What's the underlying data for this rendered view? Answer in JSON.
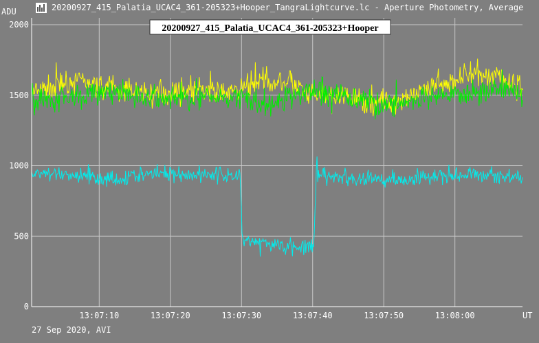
{
  "window": {
    "title": "20200927_415_Palatia_UCAC4_361-205323+Hooper_TangraLightcurve.lc - Aperture Photometry, Average",
    "icon": "lightcurve-app-icon"
  },
  "footer": {
    "date_label": "27 Sep 2020, AVI"
  },
  "colors": {
    "background": "#7f7f7f",
    "grid": "#c8c8c8",
    "text": "#ffffff"
  },
  "chart_data": {
    "type": "line",
    "title": "20200927_415_Palatia_UCAC4_361-205323+Hooper",
    "ylabel": "ADU",
    "xlabel": "UT",
    "ylim": [
      0,
      2000
    ],
    "y_ticks": [
      "0",
      "500",
      "1000",
      "1500",
      "2000"
    ],
    "x_ticks": [
      "13:07:10",
      "13:07:20",
      "13:07:30",
      "13:07:40",
      "13:07:50",
      "13:08:00"
    ],
    "x_range": [
      "13:07:00.5",
      "13:08:09.5"
    ],
    "grid": true,
    "series": [
      {
        "color": "#ffff00",
        "x_start": "13:07:00.5",
        "x_end": "13:08:09.5",
        "keyframes": [
          [
            0,
            1510
          ],
          [
            0.08,
            1600
          ],
          [
            0.16,
            1560
          ],
          [
            0.25,
            1510
          ],
          [
            0.33,
            1540
          ],
          [
            0.41,
            1520
          ],
          [
            0.47,
            1600
          ],
          [
            0.52,
            1600
          ],
          [
            0.57,
            1490
          ],
          [
            0.64,
            1480
          ],
          [
            0.72,
            1450
          ],
          [
            0.8,
            1520
          ],
          [
            0.88,
            1640
          ],
          [
            0.95,
            1650
          ],
          [
            1,
            1540
          ]
        ],
        "noise": 90
      },
      {
        "color": "#00ee00",
        "x_start": "13:07:00.5",
        "x_end": "13:08:09.5",
        "keyframes": [
          [
            0,
            1450
          ],
          [
            0.08,
            1500
          ],
          [
            0.16,
            1520
          ],
          [
            0.25,
            1470
          ],
          [
            0.33,
            1480
          ],
          [
            0.41,
            1500
          ],
          [
            0.47,
            1420
          ],
          [
            0.52,
            1470
          ],
          [
            0.57,
            1540
          ],
          [
            0.64,
            1490
          ],
          [
            0.72,
            1430
          ],
          [
            0.8,
            1460
          ],
          [
            0.88,
            1510
          ],
          [
            0.95,
            1560
          ],
          [
            1,
            1510
          ]
        ],
        "noise": 90
      },
      {
        "color": "#00eeee",
        "x_start": "13:07:00.5",
        "x_end": "13:08:09.5",
        "keyframes": [
          [
            0,
            950
          ],
          [
            0.1,
            930
          ],
          [
            0.17,
            900
          ],
          [
            0.25,
            950
          ],
          [
            0.35,
            935
          ],
          [
            0.425,
            930
          ],
          [
            0.429,
            480
          ],
          [
            0.5,
            430
          ],
          [
            0.56,
            420
          ],
          [
            0.575,
            430
          ],
          [
            0.58,
            930
          ],
          [
            0.65,
            910
          ],
          [
            0.75,
            900
          ],
          [
            0.85,
            940
          ],
          [
            0.95,
            930
          ],
          [
            1,
            910
          ]
        ],
        "noise": 60
      }
    ]
  }
}
